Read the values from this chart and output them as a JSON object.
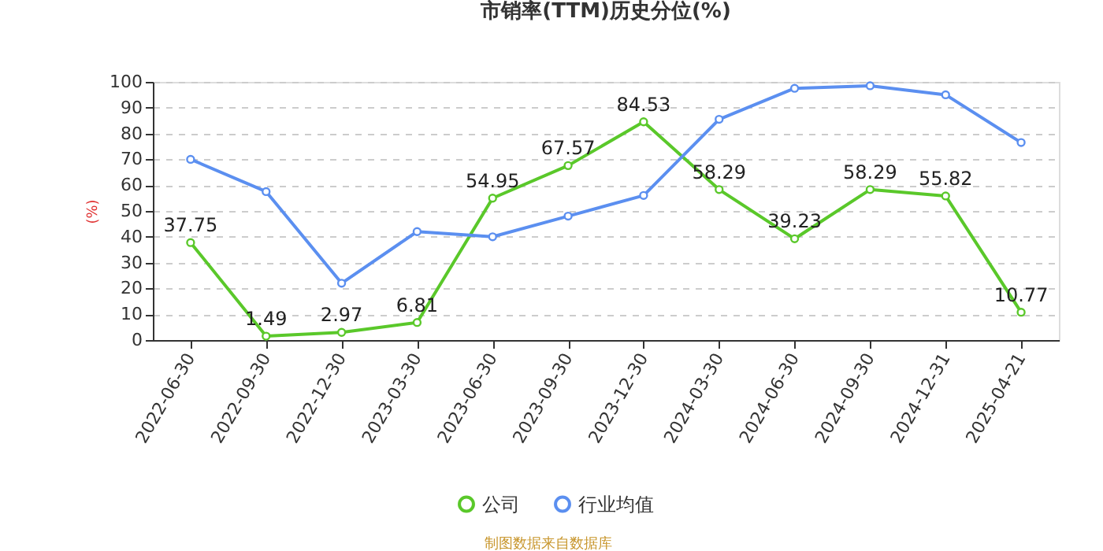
{
  "chart_data": {
    "type": "line",
    "title": "市销率(TTM)历史分位(%)",
    "ylabel": "(%)",
    "categories": [
      "2022-06-30",
      "2022-09-30",
      "2022-12-30",
      "2023-03-30",
      "2023-06-30",
      "2023-09-30",
      "2023-12-30",
      "2024-03-30",
      "2024-06-30",
      "2024-09-30",
      "2024-12-31",
      "2025-04-21"
    ],
    "series": [
      {
        "name": "公司",
        "color": "#5ac82a",
        "values": [
          37.75,
          1.49,
          2.97,
          6.81,
          54.95,
          67.57,
          84.53,
          58.29,
          39.23,
          58.29,
          55.82,
          10.77
        ],
        "value_labels": [
          "37.75",
          "1.49",
          "2.97",
          "6.81",
          "54.95",
          "67.57",
          "84.53",
          "58.29",
          "39.23",
          "58.29",
          "55.82",
          "10.77"
        ]
      },
      {
        "name": "行业均值",
        "color": "#5b8ff0",
        "values": [
          70,
          57.5,
          22,
          42,
          40,
          48,
          56,
          85.5,
          97.5,
          98.5,
          95,
          76.5
        ]
      }
    ],
    "ylim": [
      0,
      100
    ],
    "yticks": [
      0,
      10,
      20,
      30,
      40,
      50,
      60,
      70,
      80,
      90,
      100
    ],
    "grid": "y",
    "legend": "bottom",
    "marker": "circle",
    "line_style": "solid",
    "annotations": [
      "制图数据来自数据库"
    ]
  }
}
